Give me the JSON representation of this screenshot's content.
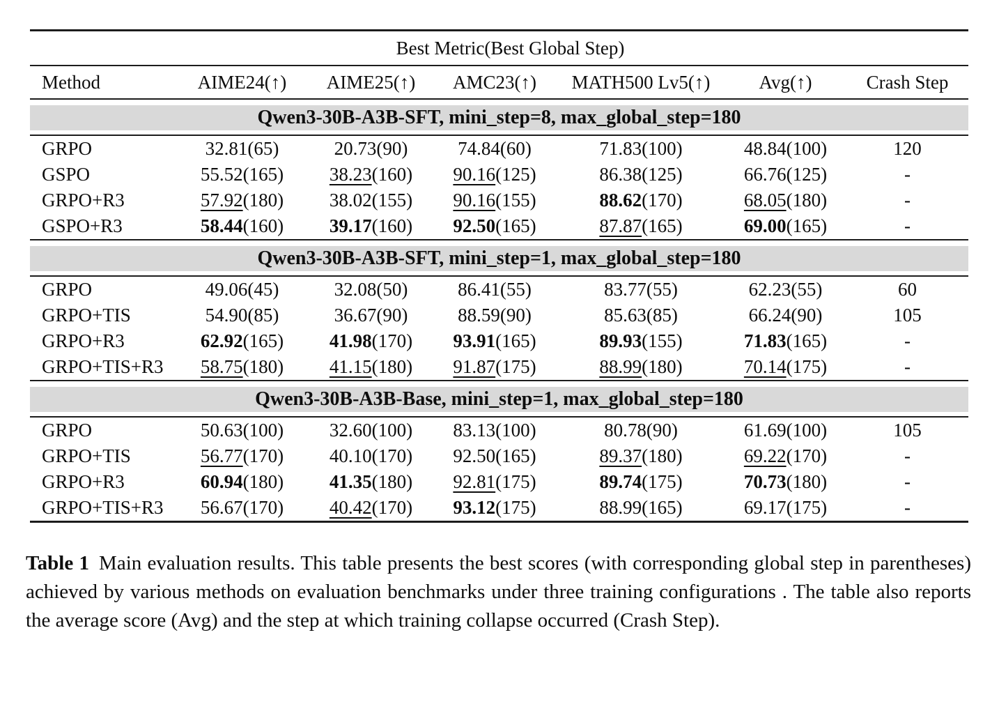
{
  "table": {
    "span_header": "Best Metric(Best Global Step)",
    "columns": [
      "Method",
      "AIME24(↑)",
      "AIME25(↑)",
      "AMC23(↑)",
      "MATH500 Lv5(↑)",
      "Avg(↑)",
      "Crash Step"
    ],
    "band_color": "#d9d9d9",
    "sections": [
      {
        "title": "Qwen3-30B-A3B-SFT, mini_step=8, max_global_step=180",
        "rows": [
          {
            "method": "GRPO",
            "metrics": [
              {
                "score": "32.81",
                "step": "65",
                "style": "plain"
              },
              {
                "score": "20.73",
                "step": "90",
                "style": "plain"
              },
              {
                "score": "74.84",
                "step": "60",
                "style": "plain"
              },
              {
                "score": "71.83",
                "step": "100",
                "style": "plain"
              },
              {
                "score": "48.84",
                "step": "100",
                "style": "plain"
              }
            ],
            "crash": "120"
          },
          {
            "method": "GSPO",
            "metrics": [
              {
                "score": "55.52",
                "step": "165",
                "style": "plain"
              },
              {
                "score": "38.23",
                "step": "160",
                "style": "underline"
              },
              {
                "score": "90.16",
                "step": "125",
                "style": "underline"
              },
              {
                "score": "86.38",
                "step": "125",
                "style": "plain"
              },
              {
                "score": "66.76",
                "step": "125",
                "style": "plain"
              }
            ],
            "crash": "-"
          },
          {
            "method": "GRPO+R3",
            "metrics": [
              {
                "score": "57.92",
                "step": "180",
                "style": "underline"
              },
              {
                "score": "38.02",
                "step": "155",
                "style": "plain"
              },
              {
                "score": "90.16",
                "step": "155",
                "style": "underline"
              },
              {
                "score": "88.62",
                "step": "170",
                "style": "bold"
              },
              {
                "score": "68.05",
                "step": "180",
                "style": "underline"
              }
            ],
            "crash": "-"
          },
          {
            "method": "GSPO+R3",
            "metrics": [
              {
                "score": "58.44",
                "step": "160",
                "style": "bold"
              },
              {
                "score": "39.17",
                "step": "160",
                "style": "bold"
              },
              {
                "score": "92.50",
                "step": "165",
                "style": "bold"
              },
              {
                "score": "87.87",
                "step": "165",
                "style": "underline"
              },
              {
                "score": "69.00",
                "step": "165",
                "style": "bold"
              }
            ],
            "crash": "-"
          }
        ]
      },
      {
        "title": "Qwen3-30B-A3B-SFT, mini_step=1, max_global_step=180",
        "rows": [
          {
            "method": "GRPO",
            "metrics": [
              {
                "score": "49.06",
                "step": "45",
                "style": "plain"
              },
              {
                "score": "32.08",
                "step": "50",
                "style": "plain"
              },
              {
                "score": "86.41",
                "step": "55",
                "style": "plain"
              },
              {
                "score": "83.77",
                "step": "55",
                "style": "plain"
              },
              {
                "score": "62.23",
                "step": "55",
                "style": "plain"
              }
            ],
            "crash": "60"
          },
          {
            "method": "GRPO+TIS",
            "metrics": [
              {
                "score": "54.90",
                "step": "85",
                "style": "plain"
              },
              {
                "score": "36.67",
                "step": "90",
                "style": "plain"
              },
              {
                "score": "88.59",
                "step": "90",
                "style": "plain"
              },
              {
                "score": "85.63",
                "step": "85",
                "style": "plain"
              },
              {
                "score": "66.24",
                "step": "90",
                "style": "plain"
              }
            ],
            "crash": "105"
          },
          {
            "method": "GRPO+R3",
            "metrics": [
              {
                "score": "62.92",
                "step": "165",
                "style": "bold"
              },
              {
                "score": "41.98",
                "step": "170",
                "style": "bold"
              },
              {
                "score": "93.91",
                "step": "165",
                "style": "bold"
              },
              {
                "score": "89.93",
                "step": "155",
                "style": "bold"
              },
              {
                "score": "71.83",
                "step": "165",
                "style": "bold"
              }
            ],
            "crash": "-"
          },
          {
            "method": "GRPO+TIS+R3",
            "metrics": [
              {
                "score": "58.75",
                "step": "180",
                "style": "underline"
              },
              {
                "score": "41.15",
                "step": "180",
                "style": "underline"
              },
              {
                "score": "91.87",
                "step": "175",
                "style": "underline"
              },
              {
                "score": "88.99",
                "step": "180",
                "style": "underline"
              },
              {
                "score": "70.14",
                "step": "175",
                "style": "underline"
              }
            ],
            "crash": "-"
          }
        ]
      },
      {
        "title": "Qwen3-30B-A3B-Base, mini_step=1, max_global_step=180",
        "rows": [
          {
            "method": "GRPO",
            "metrics": [
              {
                "score": "50.63",
                "step": "100",
                "style": "plain"
              },
              {
                "score": "32.60",
                "step": "100",
                "style": "plain"
              },
              {
                "score": "83.13",
                "step": "100",
                "style": "plain"
              },
              {
                "score": "80.78",
                "step": "90",
                "style": "plain"
              },
              {
                "score": "61.69",
                "step": "100",
                "style": "plain"
              }
            ],
            "crash": "105"
          },
          {
            "method": "GRPO+TIS",
            "metrics": [
              {
                "score": "56.77",
                "step": "170",
                "style": "underline"
              },
              {
                "score": "40.10",
                "step": "170",
                "style": "plain"
              },
              {
                "score": "92.50",
                "step": "165",
                "style": "plain"
              },
              {
                "score": "89.37",
                "step": "180",
                "style": "underline"
              },
              {
                "score": "69.22",
                "step": "170",
                "style": "underline"
              }
            ],
            "crash": "-"
          },
          {
            "method": "GRPO+R3",
            "metrics": [
              {
                "score": "60.94",
                "step": "180",
                "style": "bold"
              },
              {
                "score": "41.35",
                "step": "180",
                "style": "bold"
              },
              {
                "score": "92.81",
                "step": "175",
                "style": "underline"
              },
              {
                "score": "89.74",
                "step": "175",
                "style": "bold"
              },
              {
                "score": "70.73",
                "step": "180",
                "style": "bold"
              }
            ],
            "crash": "-"
          },
          {
            "method": "GRPO+TIS+R3",
            "metrics": [
              {
                "score": "56.67",
                "step": "170",
                "style": "plain"
              },
              {
                "score": "40.42",
                "step": "170",
                "style": "underline"
              },
              {
                "score": "93.12",
                "step": "175",
                "style": "bold"
              },
              {
                "score": "88.99",
                "step": "165",
                "style": "plain"
              },
              {
                "score": "69.17",
                "step": "175",
                "style": "plain"
              }
            ],
            "crash": "-"
          }
        ]
      }
    ]
  },
  "caption": {
    "label": "Table 1",
    "text": "Main evaluation results. This table presents the best scores (with corresponding global step in parentheses) achieved by various methods on evaluation benchmarks under three training configurations . The table also reports the average score (Avg) and the step at which training collapse occurred (Crash Step)."
  }
}
